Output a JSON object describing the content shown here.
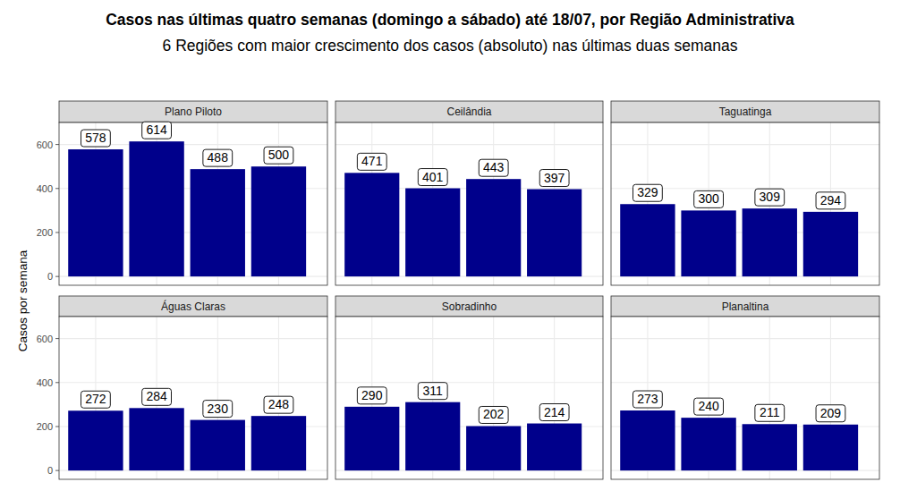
{
  "chart_data": {
    "type": "bar",
    "title": "Casos nas últimas quatro semanas (domingo a sábado) até 18/07, por Região Administrativa",
    "subtitle": "6 Regiões com maior crescimento dos casos (absoluto) nas últimas duas semanas",
    "y_label": "Casos por semana",
    "categories": [
      null,
      null,
      null,
      null
    ],
    "series": [
      {
        "name": "Plano Piloto",
        "color": "#00008b",
        "values": [
          578,
          614,
          488,
          500
        ]
      },
      {
        "name": "Ceilândia",
        "color": "#00008b",
        "values": [
          471,
          401,
          443,
          397
        ]
      },
      {
        "name": "Taguatinga",
        "color": "#00008b",
        "values": [
          329,
          300,
          309,
          294
        ]
      },
      {
        "name": "Águas Claras",
        "color": "#00008b",
        "values": [
          272,
          284,
          230,
          248
        ]
      },
      {
        "name": "Sobradinho",
        "color": "#00008b",
        "values": [
          290,
          311,
          202,
          214
        ]
      },
      {
        "name": "Planaltina",
        "color": "#00008b",
        "values": [
          273,
          240,
          211,
          209
        ]
      }
    ],
    "ylim": [
      -40,
      700
    ],
    "yticks": [
      0,
      200,
      400,
      600
    ],
    "grid": true,
    "data_labels": true
  }
}
